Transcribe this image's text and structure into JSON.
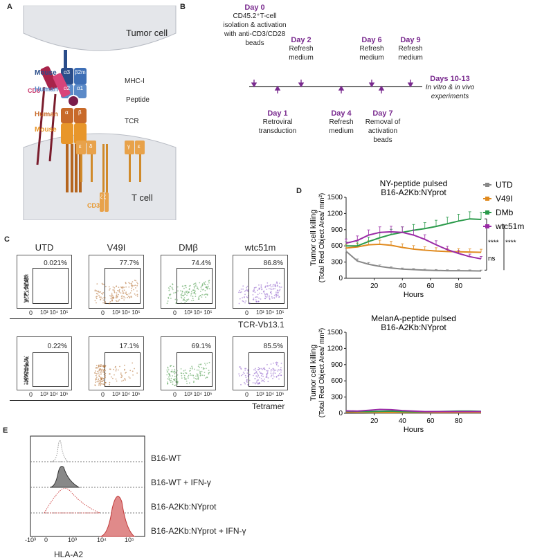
{
  "panels": {
    "a": "A",
    "b": "B",
    "c": "C",
    "d": "D",
    "e": "E"
  },
  "panel_a": {
    "tumor_cell": "Tumor cell",
    "t_cell": "T cell",
    "cd8": "CD8",
    "cd3": "CD3",
    "mouse_top": "Mouse",
    "human_top": "Human",
    "mhc": "MHC-I",
    "peptide": "Peptide",
    "human_tcr": "Human",
    "mouse_tcr": "Mouse",
    "tcr": "TCR",
    "a3": "α3",
    "b2m": "β2m",
    "a2": "α2",
    "a1": "α1",
    "alpha": "α",
    "beta": "β",
    "eps": "ε",
    "delta": "δ",
    "gamma": "γ",
    "eps2": "ε",
    "zeta": "ζ ζ"
  },
  "timeline": {
    "day0": {
      "day": "Day 0",
      "text": "CD45.2⁺T-cell isolation & activation with anti-CD3/CD28 beads"
    },
    "day2": {
      "day": "Day 2",
      "text": "Refresh medium"
    },
    "day6": {
      "day": "Day 6",
      "text": "Refresh medium"
    },
    "day9": {
      "day": "Day 9",
      "text": "Refresh medium"
    },
    "day1": {
      "day": "Day 1",
      "text": "Retroviral transduction"
    },
    "day4": {
      "day": "Day 4",
      "text": "Refresh medium"
    },
    "day7": {
      "day": "Day 7",
      "text": "Removal of activation beads"
    },
    "day1013": {
      "day": "Days 10-13",
      "text": "In vitro & in vivo experiments"
    }
  },
  "flow": {
    "headers": [
      "UTD",
      "V49I",
      "DMβ",
      "wtc51m"
    ],
    "row1_pcts": [
      "0.021%",
      "77.7%",
      "74.4%",
      "86.8%"
    ],
    "row2_pcts": [
      "0.22%",
      "17.1%",
      "69.1%",
      "85.5%"
    ],
    "axis1": "TCR-Vb13.1",
    "axis2": "Tetramer",
    "tick0": "0",
    "tick3": "10³ 10⁴ 10⁵",
    "colors": [
      "#222222",
      "#b06a2a",
      "#4a9a4a",
      "#8a5ac8"
    ]
  },
  "chart_data": [
    {
      "type": "line",
      "title": "NY-peptide pulsed",
      "subtitle": "B16-A2Kb:NYprot",
      "xlabel": "Hours",
      "ylabel": "Tumor cell killing",
      "ylabel2": "(Total Red Object Area/ mm²)",
      "xlim": [
        0,
        96
      ],
      "ylim": [
        0,
        1500
      ],
      "xticks": [
        20,
        40,
        60,
        80
      ],
      "yticks": [
        0,
        300,
        600,
        900,
        1200,
        1500
      ],
      "x": [
        0,
        8,
        16,
        24,
        32,
        40,
        48,
        56,
        64,
        72,
        80,
        88,
        96
      ],
      "series": [
        {
          "name": "UTD",
          "color": "#888888",
          "marker": "square",
          "values": [
            500,
            320,
            260,
            220,
            190,
            170,
            160,
            150,
            145,
            140,
            140,
            138,
            135
          ]
        },
        {
          "name": "V49I",
          "color": "#e08a1e",
          "marker": "triangle",
          "values": [
            560,
            580,
            620,
            630,
            610,
            570,
            540,
            520,
            505,
            495,
            490,
            485,
            480
          ]
        },
        {
          "name": "DMb",
          "color": "#2a9a4a",
          "marker": "diamond",
          "values": [
            600,
            600,
            680,
            750,
            810,
            850,
            890,
            920,
            960,
            1010,
            1060,
            1100,
            1090
          ]
        },
        {
          "name": "wtc51m",
          "color": "#9a2aa6",
          "marker": "circle",
          "values": [
            650,
            700,
            800,
            850,
            860,
            850,
            800,
            720,
            620,
            530,
            460,
            400,
            360
          ]
        }
      ],
      "sig": [
        "****",
        "****",
        "ns"
      ]
    },
    {
      "type": "line",
      "title": "MelanA-peptide pulsed",
      "subtitle": "B16-A2Kb:NYprot",
      "xlabel": "Hours",
      "ylabel": "Tumor cell killing",
      "ylabel2": "(Total Red Object Area/ mm²)",
      "xlim": [
        0,
        96
      ],
      "ylim": [
        0,
        1500
      ],
      "xticks": [
        20,
        40,
        60,
        80
      ],
      "yticks": [
        0,
        300,
        600,
        900,
        1200,
        1500
      ],
      "x": [
        0,
        8,
        16,
        24,
        32,
        40,
        48,
        56,
        64,
        72,
        80,
        88,
        96
      ],
      "series": [
        {
          "name": "UTD",
          "color": "#888888",
          "values": [
            20,
            15,
            12,
            10,
            10,
            10,
            10,
            10,
            10,
            10,
            10,
            10,
            10
          ]
        },
        {
          "name": "V49I",
          "color": "#e08a1e",
          "values": [
            25,
            20,
            18,
            15,
            15,
            15,
            15,
            15,
            15,
            15,
            15,
            15,
            15
          ]
        },
        {
          "name": "DMb",
          "color": "#2a9a4a",
          "values": [
            40,
            35,
            30,
            35,
            40,
            30,
            25,
            25,
            30,
            35,
            40,
            40,
            35
          ]
        },
        {
          "name": "wtc51m",
          "color": "#9a2aa6",
          "values": [
            45,
            40,
            55,
            70,
            65,
            50,
            40,
            30,
            30,
            30,
            30,
            30,
            30
          ]
        }
      ]
    }
  ],
  "hla": {
    "labels": [
      "B16-WT",
      "B16-WT + IFN-γ",
      "B16-A2Kb:NYprot",
      "B16-A2Kb:NYprot + IFN-γ"
    ],
    "axis": "HLA-A2",
    "ticks": [
      "-10³",
      "0",
      "10³",
      "10⁴",
      "10⁵"
    ]
  }
}
